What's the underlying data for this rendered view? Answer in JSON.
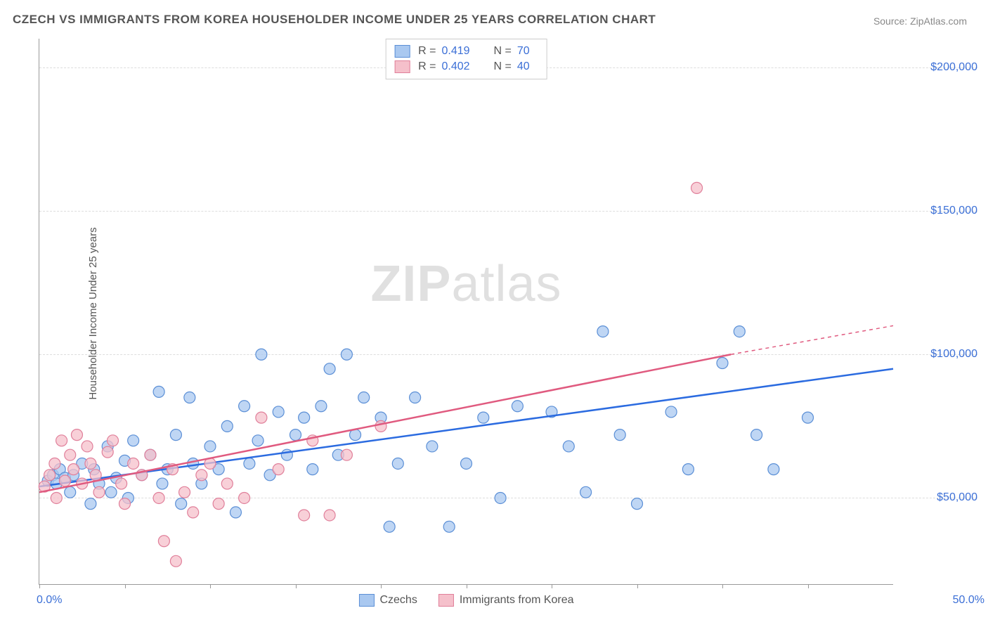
{
  "title": "CZECH VS IMMIGRANTS FROM KOREA HOUSEHOLDER INCOME UNDER 25 YEARS CORRELATION CHART",
  "source": "Source: ZipAtlas.com",
  "ylabel": "Householder Income Under 25 years",
  "watermark_zip": "ZIP",
  "watermark_atlas": "atlas",
  "chart": {
    "type": "scatter",
    "xlim": [
      0,
      50
    ],
    "ylim": [
      20000,
      210000
    ],
    "x_start_label": "0.0%",
    "x_end_label": "50.0%",
    "xtick_positions": [
      0,
      5,
      10,
      15,
      20,
      25,
      30,
      35,
      40,
      45
    ],
    "yticks": [
      {
        "v": 50000,
        "label": "$50,000"
      },
      {
        "v": 100000,
        "label": "$100,000"
      },
      {
        "v": 150000,
        "label": "$150,000"
      },
      {
        "v": 200000,
        "label": "$200,000"
      }
    ],
    "series": [
      {
        "name": "Czechs",
        "color_fill": "#a9c8f0",
        "color_stroke": "#5b8fd6",
        "line_color": "#2b6be0",
        "R": "0.419",
        "N": "70",
        "trend": {
          "x1": 0,
          "y1": 54000,
          "x2": 50,
          "y2": 95000
        },
        "points": [
          [
            0.5,
            56000
          ],
          [
            0.8,
            58000
          ],
          [
            1.0,
            55000
          ],
          [
            1.2,
            60000
          ],
          [
            1.5,
            57000
          ],
          [
            1.8,
            52000
          ],
          [
            2.0,
            58000
          ],
          [
            2.5,
            62000
          ],
          [
            3.0,
            48000
          ],
          [
            3.2,
            60000
          ],
          [
            3.5,
            55000
          ],
          [
            4.0,
            68000
          ],
          [
            4.2,
            52000
          ],
          [
            4.5,
            57000
          ],
          [
            5.0,
            63000
          ],
          [
            5.2,
            50000
          ],
          [
            5.5,
            70000
          ],
          [
            6.0,
            58000
          ],
          [
            6.5,
            65000
          ],
          [
            7.0,
            87000
          ],
          [
            7.2,
            55000
          ],
          [
            7.5,
            60000
          ],
          [
            8.0,
            72000
          ],
          [
            8.3,
            48000
          ],
          [
            8.8,
            85000
          ],
          [
            9.0,
            62000
          ],
          [
            9.5,
            55000
          ],
          [
            10.0,
            68000
          ],
          [
            10.5,
            60000
          ],
          [
            11.0,
            75000
          ],
          [
            11.5,
            45000
          ],
          [
            12.0,
            82000
          ],
          [
            12.3,
            62000
          ],
          [
            12.8,
            70000
          ],
          [
            13.0,
            100000
          ],
          [
            13.5,
            58000
          ],
          [
            14.0,
            80000
          ],
          [
            14.5,
            65000
          ],
          [
            15.0,
            72000
          ],
          [
            15.5,
            78000
          ],
          [
            16.0,
            60000
          ],
          [
            16.5,
            82000
          ],
          [
            17.0,
            95000
          ],
          [
            17.5,
            65000
          ],
          [
            18.0,
            100000
          ],
          [
            18.5,
            72000
          ],
          [
            19.0,
            85000
          ],
          [
            20.0,
            78000
          ],
          [
            20.5,
            40000
          ],
          [
            21.0,
            62000
          ],
          [
            22.0,
            85000
          ],
          [
            23.0,
            68000
          ],
          [
            24.0,
            40000
          ],
          [
            25.0,
            62000
          ],
          [
            26.0,
            78000
          ],
          [
            27.0,
            50000
          ],
          [
            28.0,
            82000
          ],
          [
            30.0,
            80000
          ],
          [
            31.0,
            68000
          ],
          [
            32.0,
            52000
          ],
          [
            33.0,
            108000
          ],
          [
            34.0,
            72000
          ],
          [
            35.0,
            48000
          ],
          [
            37.0,
            80000
          ],
          [
            38.0,
            60000
          ],
          [
            40.0,
            97000
          ],
          [
            41.0,
            108000
          ],
          [
            42.0,
            72000
          ],
          [
            43.0,
            60000
          ],
          [
            45.0,
            78000
          ]
        ]
      },
      {
        "name": "Immigrants from Korea",
        "color_fill": "#f5c0cb",
        "color_stroke": "#e07f9a",
        "line_color": "#e05a7f",
        "R": "0.402",
        "N": "40",
        "trend": {
          "x1": 0,
          "y1": 52000,
          "x2": 40.5,
          "y2": 100000
        },
        "trend_dash": {
          "x1": 40.5,
          "y1": 100000,
          "x2": 50,
          "y2": 110000
        },
        "points": [
          [
            0.3,
            54000
          ],
          [
            0.6,
            58000
          ],
          [
            0.9,
            62000
          ],
          [
            1.0,
            50000
          ],
          [
            1.3,
            70000
          ],
          [
            1.5,
            56000
          ],
          [
            1.8,
            65000
          ],
          [
            2.0,
            60000
          ],
          [
            2.2,
            72000
          ],
          [
            2.5,
            55000
          ],
          [
            2.8,
            68000
          ],
          [
            3.0,
            62000
          ],
          [
            3.3,
            58000
          ],
          [
            3.5,
            52000
          ],
          [
            4.0,
            66000
          ],
          [
            4.3,
            70000
          ],
          [
            4.8,
            55000
          ],
          [
            5.0,
            48000
          ],
          [
            5.5,
            62000
          ],
          [
            6.0,
            58000
          ],
          [
            6.5,
            65000
          ],
          [
            7.0,
            50000
          ],
          [
            7.3,
            35000
          ],
          [
            7.8,
            60000
          ],
          [
            8.0,
            28000
          ],
          [
            8.5,
            52000
          ],
          [
            9.0,
            45000
          ],
          [
            9.5,
            58000
          ],
          [
            10.0,
            62000
          ],
          [
            10.5,
            48000
          ],
          [
            11.0,
            55000
          ],
          [
            12.0,
            50000
          ],
          [
            13.0,
            78000
          ],
          [
            14.0,
            60000
          ],
          [
            15.5,
            44000
          ],
          [
            16.0,
            70000
          ],
          [
            17.0,
            44000
          ],
          [
            18.0,
            65000
          ],
          [
            20.0,
            75000
          ],
          [
            38.5,
            158000
          ]
        ]
      }
    ]
  },
  "legend_bottom": [
    {
      "label": "Czechs",
      "fill": "#a9c8f0",
      "stroke": "#5b8fd6"
    },
    {
      "label": "Immigrants from Korea",
      "fill": "#f5c0cb",
      "stroke": "#e07f9a"
    }
  ]
}
